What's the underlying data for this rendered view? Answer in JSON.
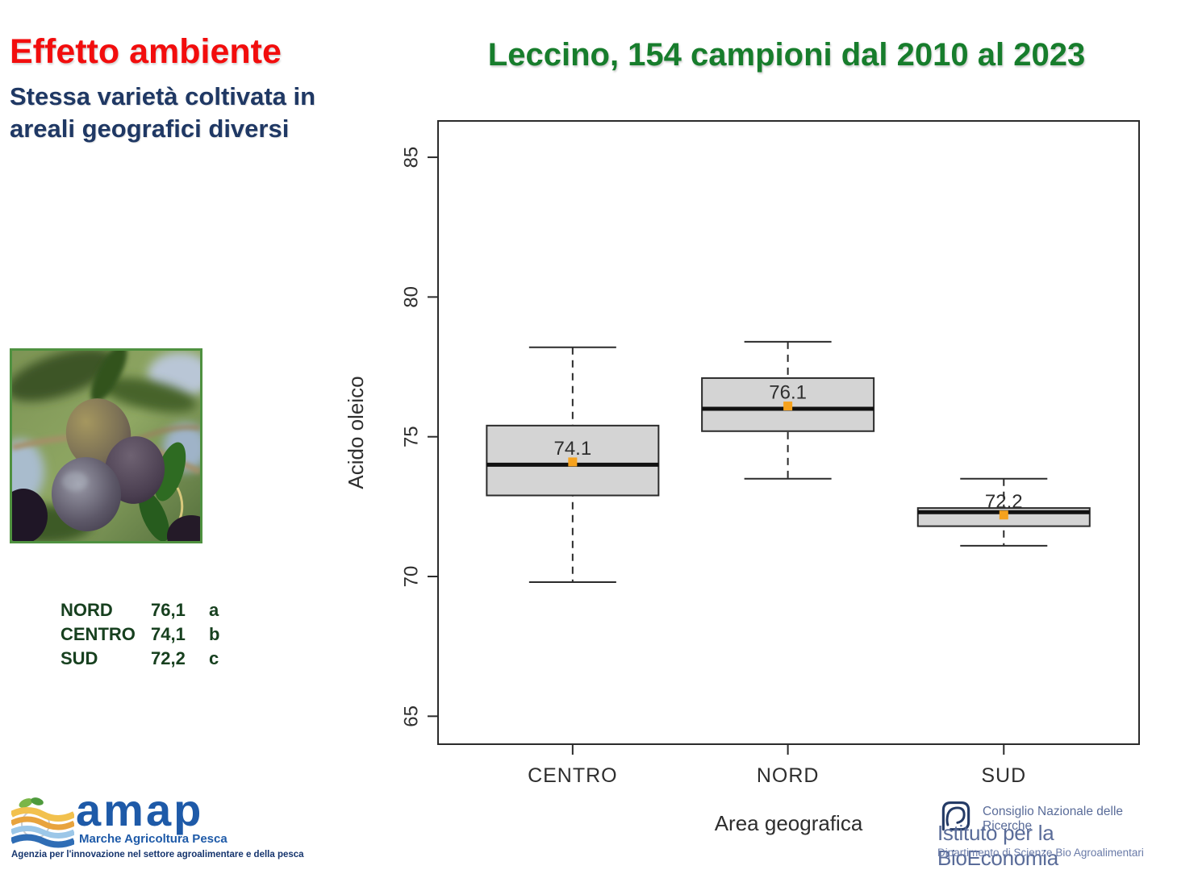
{
  "header": {
    "title": "Effetto ambiente",
    "subtitle_line1": "Stessa varietà coltivata in",
    "subtitle_line2": "areali geografici diversi",
    "right_title": "Leccino, 154 campioni dal 2010 al 2023"
  },
  "stats_table": {
    "rows": [
      {
        "area": "NORD",
        "value": "76,1",
        "group": "a"
      },
      {
        "area": "CENTRO",
        "value": "74,1",
        "group": "b"
      },
      {
        "area": "SUD",
        "value": "72,2",
        "group": "c"
      }
    ]
  },
  "chart_data": {
    "type": "boxplot",
    "title": "",
    "xlabel": "Area geografica",
    "ylabel": "Acido oleico",
    "ylim": [
      64.0,
      86.3
    ],
    "yticks": [
      65,
      70,
      75,
      80,
      85
    ],
    "grid": false,
    "categories": [
      "CENTRO",
      "NORD",
      "SUD"
    ],
    "series": [
      {
        "category": "CENTRO",
        "whisker_low": 69.8,
        "q1": 72.9,
        "median": 74.0,
        "q3": 75.4,
        "whisker_high": 78.2,
        "mean": 74.1,
        "mean_label": "74.1"
      },
      {
        "category": "NORD",
        "whisker_low": 73.5,
        "q1": 75.2,
        "median": 76.0,
        "q3": 77.1,
        "whisker_high": 78.4,
        "mean": 76.1,
        "mean_label": "76.1"
      },
      {
        "category": "SUD",
        "whisker_low": 71.1,
        "q1": 71.8,
        "median": 72.3,
        "q3": 72.45,
        "whisker_high": 73.5,
        "mean": 72.2,
        "mean_label": "72.2"
      }
    ],
    "colors": {
      "box_fill": "#d4d4d4",
      "axis": "#2b2b2b",
      "median": "#111111",
      "mean_marker": "#f6a21d",
      "text": "#2e2e2e"
    }
  },
  "footer": {
    "amap": {
      "name": "amap",
      "tagline": "Marche Agricoltura Pesca",
      "subtext": "Agenzia per l'innovazione nel settore agroalimentare e della pesca"
    },
    "cnr": {
      "line1": "Consiglio Nazionale delle Ricerche",
      "line2": "Istituto per la BioEconomia",
      "line3": "Dipartimento di Scienze Bio Agroalimentari"
    }
  },
  "palette": {
    "title_red": "#f20d0d",
    "title_navy": "#1f3864",
    "title_green": "#177d2c",
    "table_green": "#17401f",
    "amap_blue": "#1e5aa8",
    "amap_navy": "#16356e",
    "cnr_blue_gray": "#5a6c99",
    "photo_border_green": "#4f9140"
  }
}
